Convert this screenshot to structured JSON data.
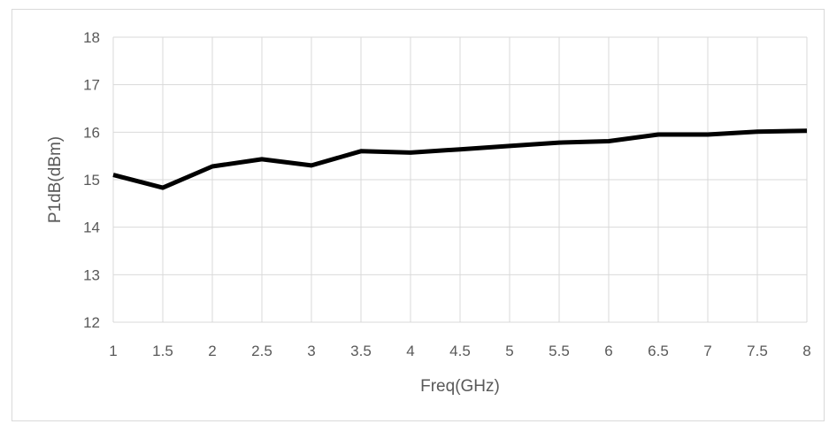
{
  "chart_data": {
    "type": "line",
    "xlabel": "Freq(GHz)",
    "ylabel": "P1dB(dBm)",
    "xlim": [
      1,
      8
    ],
    "ylim": [
      12,
      18
    ],
    "x_ticks": [
      "1",
      "1.5",
      "2",
      "2.5",
      "3",
      "3.5",
      "4",
      "4.5",
      "5",
      "5.5",
      "6",
      "6.5",
      "7",
      "7.5",
      "8"
    ],
    "y_ticks": [
      "12",
      "13",
      "14",
      "15",
      "16",
      "17",
      "18"
    ],
    "grid": true,
    "legend": "none",
    "series": [
      {
        "color": "#000000",
        "x": [
          1,
          1.5,
          2,
          2.5,
          3,
          3.5,
          4,
          4.5,
          5,
          5.5,
          6,
          6.5,
          7,
          7.5,
          8
        ],
        "y": [
          15.1,
          14.83,
          15.28,
          15.43,
          15.3,
          15.6,
          15.57,
          15.64,
          15.71,
          15.78,
          15.81,
          15.95,
          15.95,
          16.01,
          16.03
        ]
      }
    ]
  }
}
